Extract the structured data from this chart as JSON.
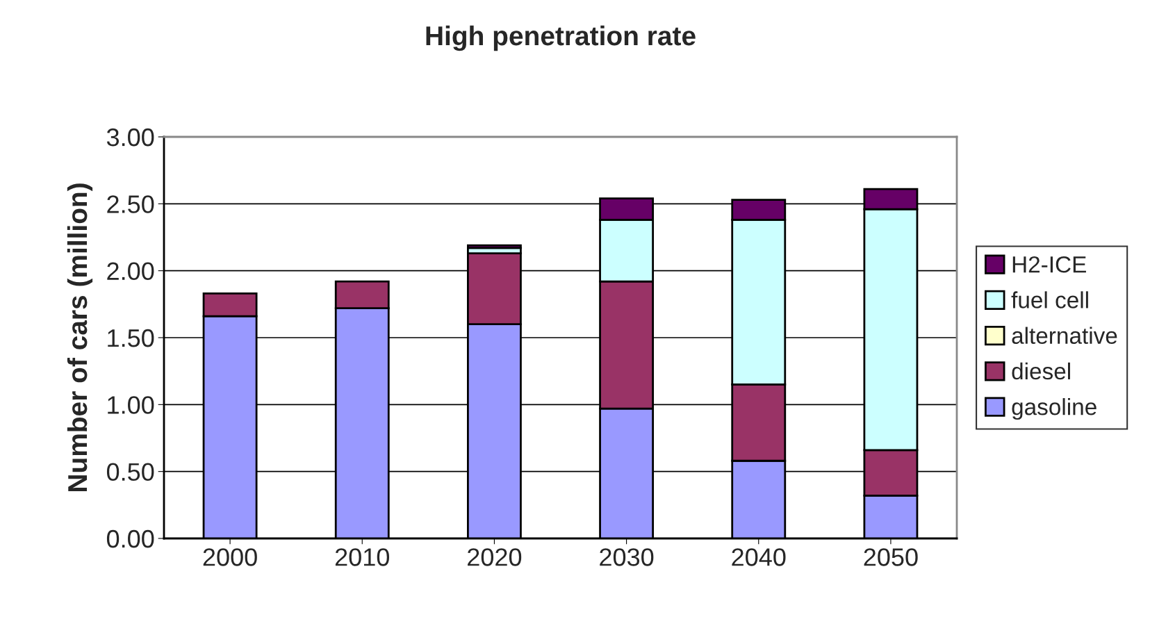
{
  "chart_data": {
    "type": "bar",
    "title": "High penetration rate",
    "ylabel": "Number of cars (million)",
    "categories": [
      "2000",
      "2010",
      "2020",
      "2030",
      "2040",
      "2050"
    ],
    "stacked": true,
    "series": [
      {
        "name": "gasoline",
        "color": "#9999ff",
        "values": [
          1.66,
          1.72,
          1.6,
          0.97,
          0.58,
          0.32
        ]
      },
      {
        "name": "diesel",
        "color": "#993366",
        "values": [
          0.17,
          0.2,
          0.53,
          0.95,
          0.57,
          0.34
        ]
      },
      {
        "name": "alternative",
        "color": "#ffffcc",
        "values": [
          0,
          0,
          0,
          0,
          0,
          0
        ]
      },
      {
        "name": "fuel cell",
        "color": "#ccffff",
        "values": [
          0,
          0,
          0.04,
          0.46,
          1.23,
          1.8
        ]
      },
      {
        "name": "H2-ICE",
        "color": "#660066",
        "values": [
          0,
          0,
          0.02,
          0.16,
          0.15,
          0.15
        ]
      }
    ],
    "ylim": [
      0,
      3
    ],
    "yticks": [
      {
        "value": 0,
        "label": "0.00"
      },
      {
        "value": 0.5,
        "label": "0.50"
      },
      {
        "value": 1,
        "label": "1.00"
      },
      {
        "value": 1.5,
        "label": "1.50"
      },
      {
        "value": 2,
        "label": "2.00"
      },
      {
        "value": 2.5,
        "label": "2.50"
      },
      {
        "value": 3,
        "label": "3.00"
      }
    ],
    "grid": "y",
    "legend": "right"
  }
}
